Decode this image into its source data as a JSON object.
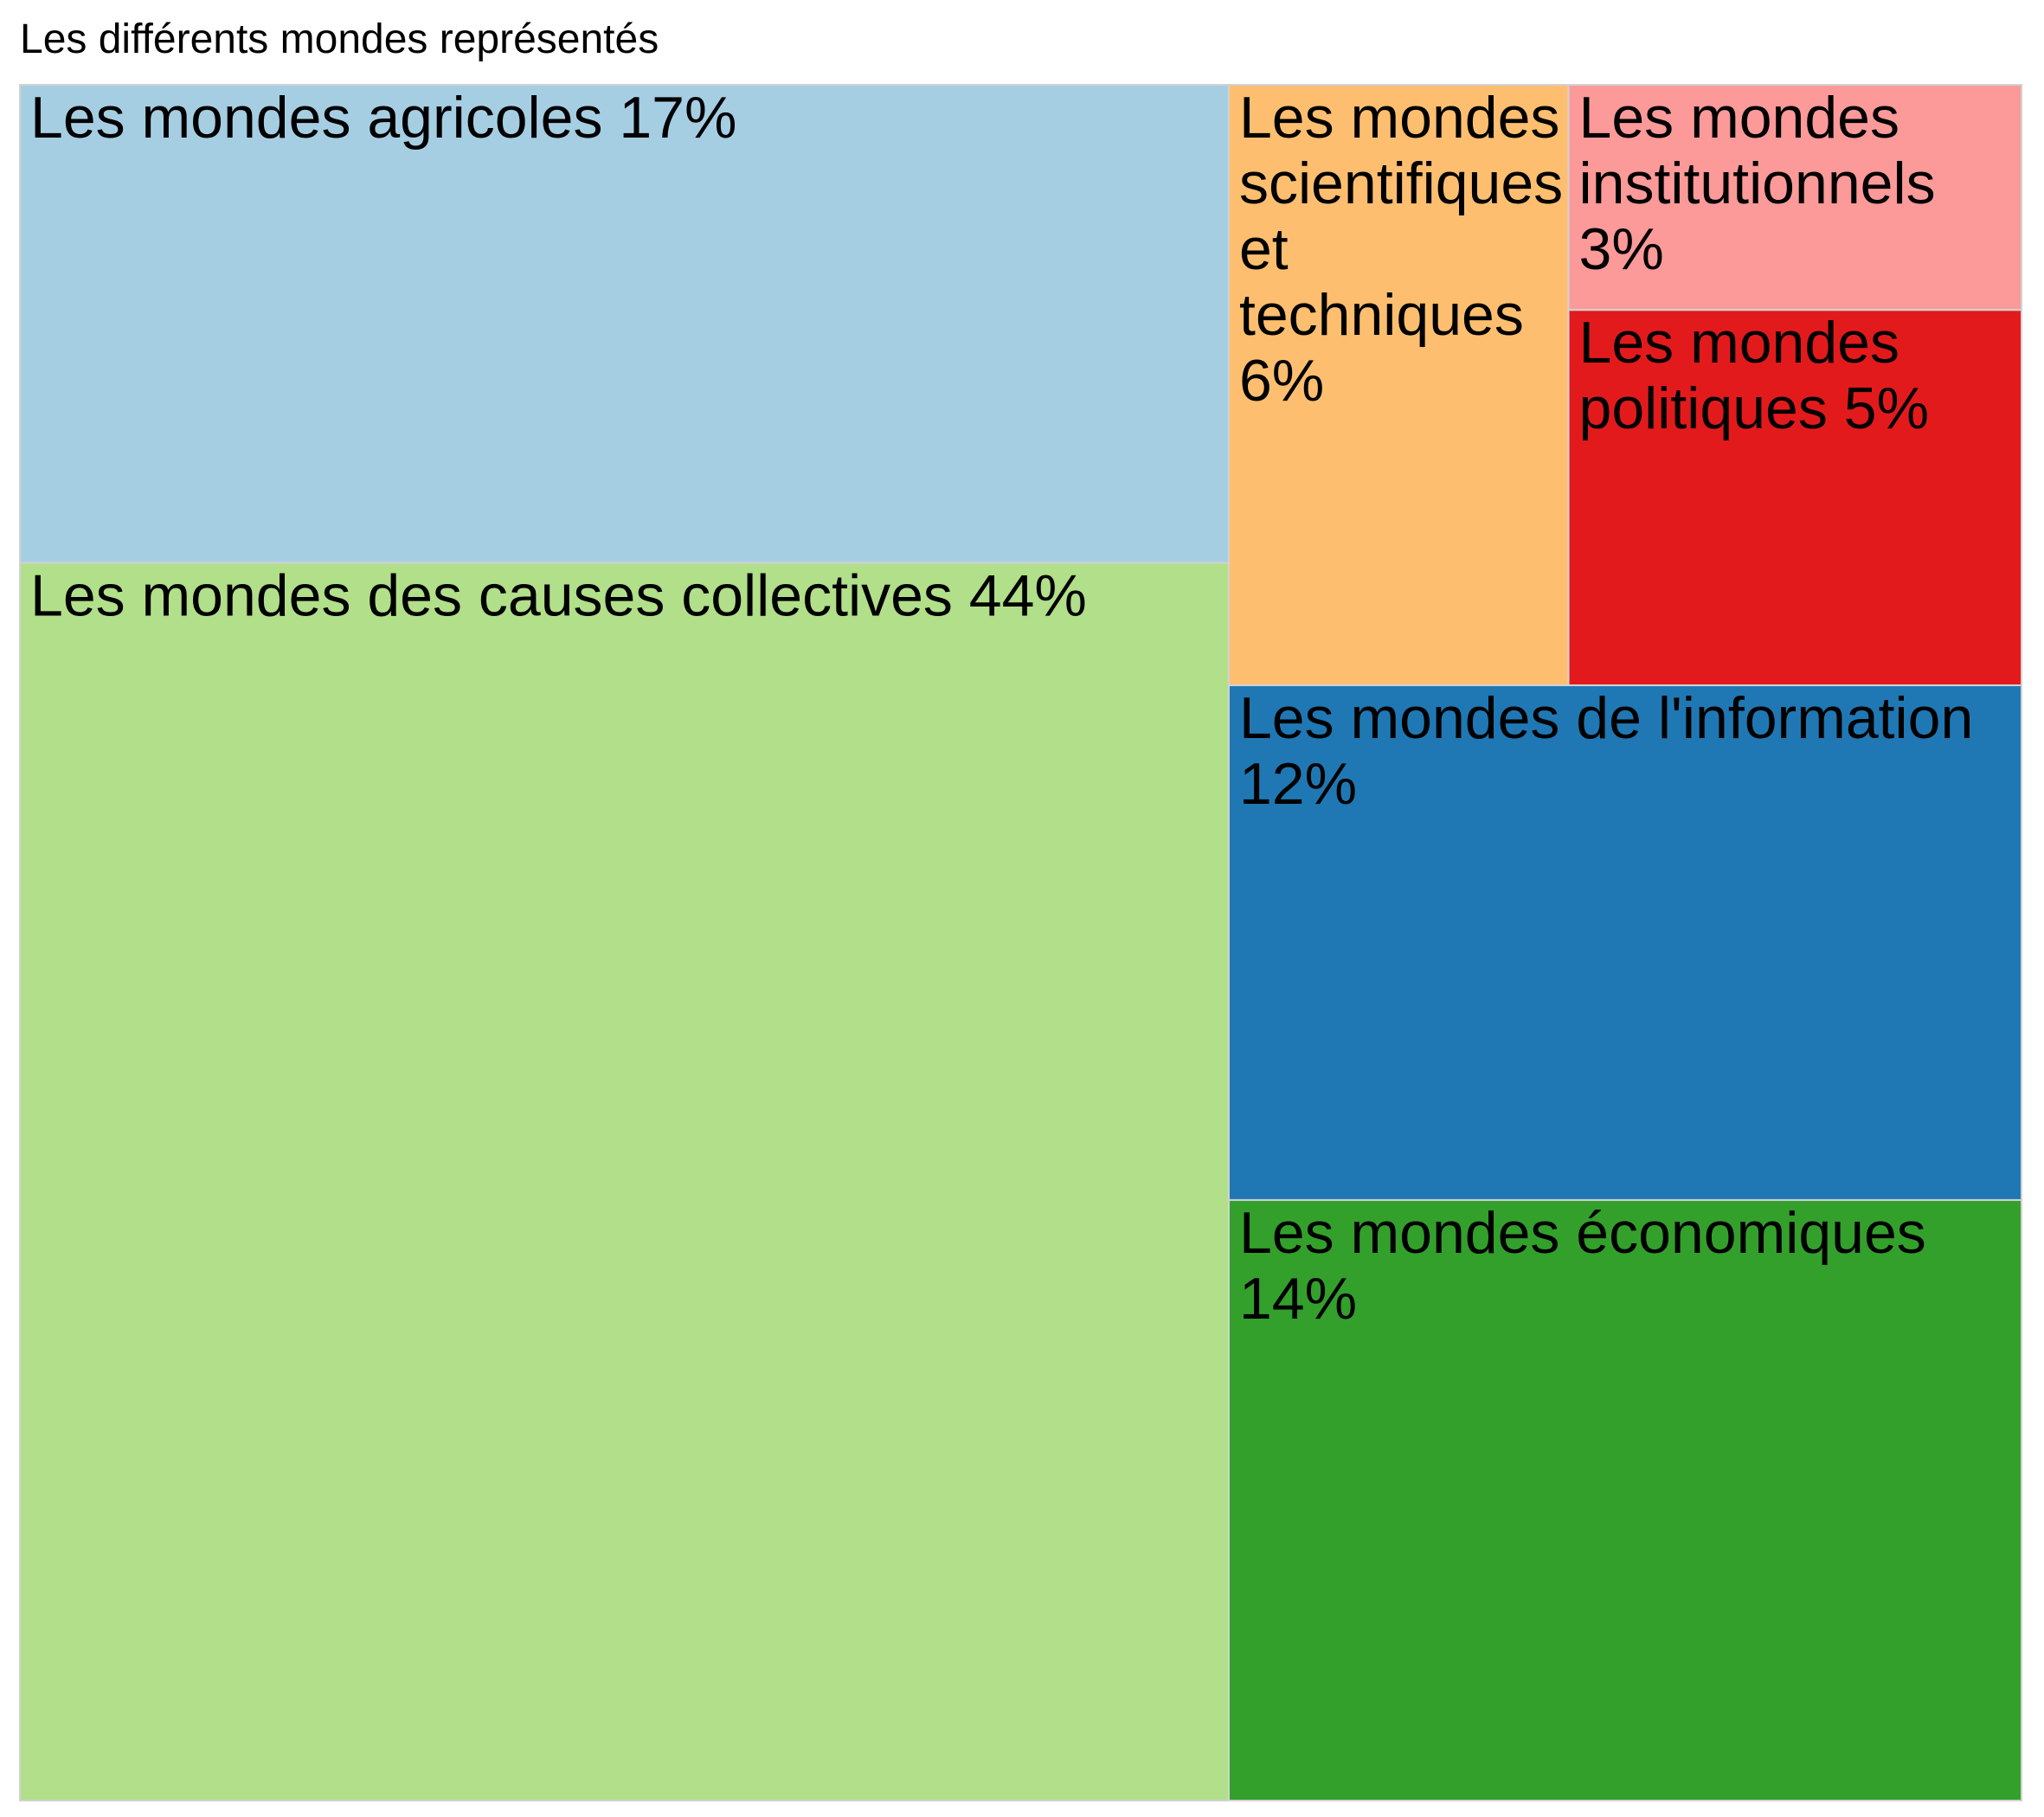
{
  "chart_data": {
    "type": "treemap",
    "title": "Les différents mondes représentés",
    "items": [
      {
        "label": "Les mondes des causes collectives",
        "value": 44,
        "value_label": "44%",
        "color": "#b2df8a"
      },
      {
        "label": "Les mondes agricoles",
        "value": 17,
        "value_label": "17%",
        "color": "#a6cee3"
      },
      {
        "label": "Les mondes économiques",
        "value": 14,
        "value_label": "14%",
        "color": "#33a02c"
      },
      {
        "label": "Les mondes de l'information",
        "value": 12,
        "value_label": "12%",
        "color": "#1f78b4"
      },
      {
        "label": "Les mondes scientifiques et techniques",
        "value": 6,
        "value_label": "6%",
        "color": "#fdbf6f"
      },
      {
        "label": "Les mondes politiques",
        "value": 5,
        "value_label": "5%",
        "color": "#e31a1c"
      },
      {
        "label": "Les mondes institutionnels",
        "value": 3,
        "value_label": "3%",
        "color": "#fb9a99"
      }
    ]
  }
}
